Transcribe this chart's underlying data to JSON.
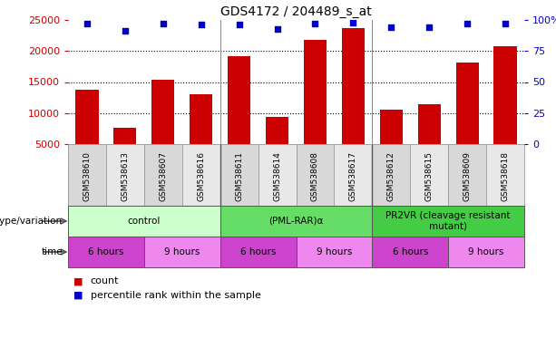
{
  "title": "GDS4172 / 204489_s_at",
  "samples": [
    "GSM538610",
    "GSM538613",
    "GSM538607",
    "GSM538616",
    "GSM538611",
    "GSM538614",
    "GSM538608",
    "GSM538617",
    "GSM538612",
    "GSM538615",
    "GSM538609",
    "GSM538618"
  ],
  "counts": [
    13700,
    7700,
    15300,
    13000,
    19200,
    9400,
    21800,
    23700,
    10600,
    11400,
    18100,
    20700
  ],
  "percentile_ranks": [
    97,
    91,
    97,
    96,
    96,
    93,
    97,
    98,
    94,
    94,
    97,
    97
  ],
  "ylim_left": [
    5000,
    25000
  ],
  "ylim_right": [
    0,
    100
  ],
  "yticks_left": [
    5000,
    10000,
    15000,
    20000,
    25000
  ],
  "yticks_right": [
    0,
    25,
    50,
    75,
    100
  ],
  "bar_color": "#cc0000",
  "dot_color": "#0000cc",
  "groups": [
    {
      "label": "control",
      "start": 0,
      "end": 4,
      "color": "#ccffcc"
    },
    {
      "label": "(PML-RAR)α",
      "start": 4,
      "end": 8,
      "color": "#66dd66"
    },
    {
      "label": "PR2VR (cleavage resistant\nmutant)",
      "start": 8,
      "end": 12,
      "color": "#44cc44"
    }
  ],
  "time_groups": [
    {
      "label": "6 hours",
      "start": 0,
      "end": 2,
      "color": "#cc44cc"
    },
    {
      "label": "9 hours",
      "start": 2,
      "end": 4,
      "color": "#ee88ee"
    },
    {
      "label": "6 hours",
      "start": 4,
      "end": 6,
      "color": "#cc44cc"
    },
    {
      "label": "9 hours",
      "start": 6,
      "end": 8,
      "color": "#ee88ee"
    },
    {
      "label": "6 hours",
      "start": 8,
      "end": 10,
      "color": "#cc44cc"
    },
    {
      "label": "9 hours",
      "start": 10,
      "end": 12,
      "color": "#ee88ee"
    }
  ],
  "genotype_label": "genotype/variation",
  "time_label": "time",
  "legend_count_label": "count",
  "legend_pct_label": "percentile rank within the sample",
  "grid_color": "#000000",
  "background_color": "#ffffff",
  "tick_label_color_left": "#cc0000",
  "tick_label_color_right": "#0000cc",
  "sample_bg_color": "#d8d8d8",
  "sample_alt_bg": "#e8e8e8"
}
